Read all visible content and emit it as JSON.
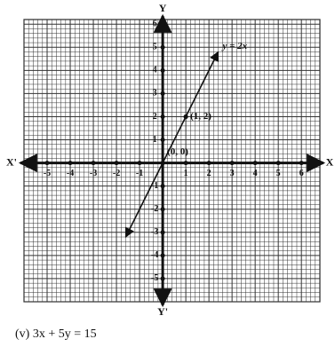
{
  "chart_data": {
    "type": "line",
    "axis_labels": {
      "x": "X",
      "x_neg": "X'",
      "y": "Y",
      "y_neg": "Y'"
    },
    "caption": "(v) 3x + 5y = 15",
    "xlim": [
      -6,
      6.8
    ],
    "ylim": [
      -6,
      6.2
    ],
    "xticks": [
      -5,
      -4,
      -3,
      -2,
      -1,
      1,
      2,
      3,
      4,
      5,
      6
    ],
    "yticks": [
      -5,
      -4,
      -3,
      -2,
      -1,
      1,
      2,
      3,
      4,
      5,
      6
    ],
    "grid": true,
    "series": [
      {
        "name": "y = 2x",
        "color": "#111111",
        "x": [
          -1.6,
          2.4
        ],
        "values": [
          -3.2,
          4.8
        ]
      },
      {
        "color": "#111111",
        "x": [
          0,
          1
        ],
        "values": [
          0,
          2
        ],
        "value_labels": [
          "(0, 0)",
          "(1, 2)"
        ]
      }
    ]
  }
}
